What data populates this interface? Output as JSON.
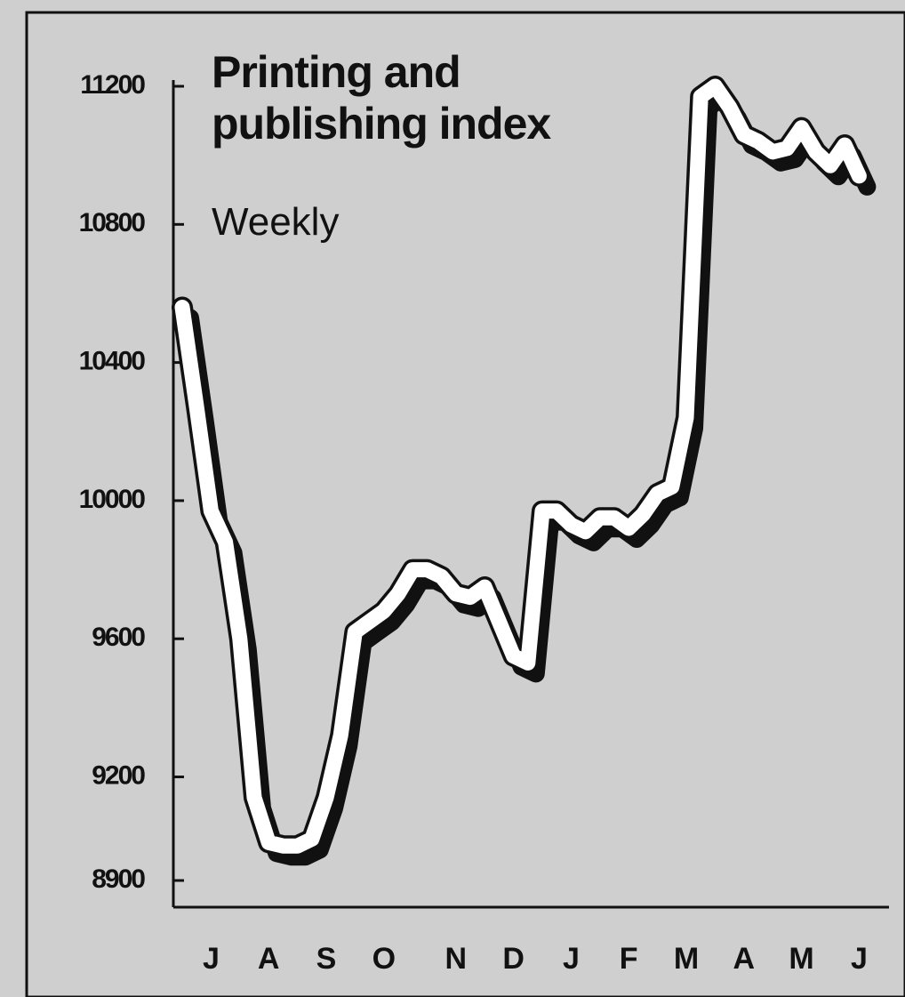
{
  "chart_data": {
    "type": "line",
    "title": "Printing and publishing index",
    "subtitle": "Weekly",
    "categories": [
      null,
      null,
      "J",
      null,
      null,
      null,
      "A",
      null,
      null,
      null,
      "S",
      null,
      null,
      null,
      "O",
      null,
      null,
      null,
      null,
      "N",
      null,
      null,
      null,
      "D",
      null,
      null,
      null,
      "J",
      null,
      null,
      null,
      "F",
      null,
      null,
      null,
      "M",
      null,
      null,
      null,
      "A",
      null,
      null,
      null,
      "M",
      null,
      null,
      null,
      "J"
    ],
    "values": [
      10560,
      10270,
      9970,
      9880,
      9600,
      9140,
      9010,
      9000,
      9000,
      9020,
      9140,
      9320,
      9620,
      9650,
      9680,
      9730,
      9800,
      9800,
      9780,
      9730,
      9720,
      9750,
      9650,
      9550,
      9530,
      9970,
      9970,
      9930,
      9910,
      9950,
      9950,
      9920,
      9960,
      10020,
      10040,
      10240,
      11170,
      11200,
      11140,
      11060,
      11040,
      11010,
      11020,
      11080,
      11010,
      10970,
      11030,
      10940
    ],
    "color": "#ffffff",
    "ylim": [
      8900,
      11200
    ],
    "yticks": [
      8900,
      9200,
      9600,
      10000,
      10400,
      10800,
      11200
    ],
    "grid": false
  }
}
